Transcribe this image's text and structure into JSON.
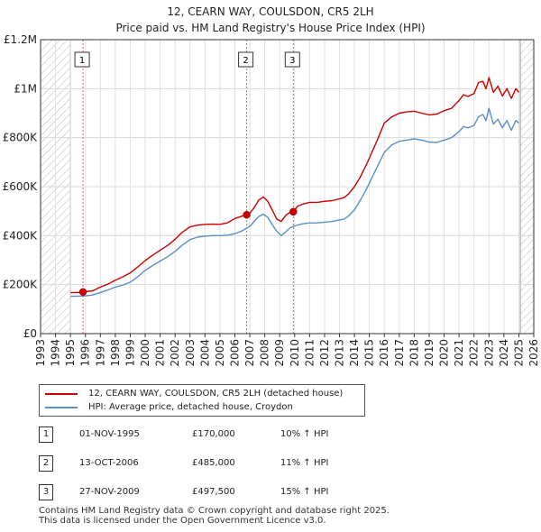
{
  "chart_data": {
    "type": "line",
    "title": "12, CEARN WAY, COULSDON, CR5 2LH",
    "subtitle": "Price paid vs. HM Land Registry's House Price Index (HPI)",
    "xlabel": "",
    "ylabel": "",
    "xlim": [
      1993,
      2026
    ],
    "ylim": [
      0,
      1200000
    ],
    "y_ticks": [
      {
        "value": 0,
        "label": "£0"
      },
      {
        "value": 200000,
        "label": "£200K"
      },
      {
        "value": 400000,
        "label": "£400K"
      },
      {
        "value": 600000,
        "label": "£600K"
      },
      {
        "value": 800000,
        "label": "£800K"
      },
      {
        "value": 1000000,
        "label": "£1M"
      },
      {
        "value": 1200000,
        "label": "£1.2M"
      }
    ],
    "x_ticks": [
      "1993",
      "1994",
      "1995",
      "1996",
      "1997",
      "1998",
      "1999",
      "2000",
      "2001",
      "2002",
      "2003",
      "2004",
      "2005",
      "2006",
      "2007",
      "2008",
      "2009",
      "2010",
      "2011",
      "2012",
      "2013",
      "2014",
      "2015",
      "2016",
      "2017",
      "2018",
      "2019",
      "2020",
      "2021",
      "2022",
      "2023",
      "2024",
      "2025",
      "2026"
    ],
    "grid": true,
    "hatched_regions": [
      [
        1993,
        1995
      ],
      [
        2025.1,
        2026
      ]
    ],
    "series": [
      {
        "name": "12, CEARN WAY, COULSDON, CR5 2LH (detached house)",
        "color": "#cc0000",
        "x": [
          1995.0,
          1995.5,
          1995.84,
          1996.5,
          1997.0,
          1997.5,
          1998.0,
          1998.5,
          1999.0,
          1999.5,
          2000.0,
          2000.5,
          2001.0,
          2001.5,
          2002.0,
          2002.5,
          2003.0,
          2003.5,
          2004.0,
          2004.5,
          2005.0,
          2005.5,
          2006.0,
          2006.5,
          2006.79,
          2007.0,
          2007.3,
          2007.6,
          2007.9,
          2008.2,
          2008.5,
          2008.8,
          2009.1,
          2009.4,
          2009.6,
          2009.91,
          2010.2,
          2010.5,
          2011.0,
          2011.5,
          2012.0,
          2012.5,
          2013.0,
          2013.3,
          2013.6,
          2014.0,
          2014.4,
          2014.8,
          2015.2,
          2015.6,
          2016.0,
          2016.5,
          2017.0,
          2017.5,
          2018.0,
          2018.5,
          2019.0,
          2019.5,
          2020.0,
          2020.5,
          2021.0,
          2021.3,
          2021.6,
          2022.0,
          2022.3,
          2022.6,
          2022.8,
          2023.0,
          2023.3,
          2023.6,
          2023.9,
          2024.2,
          2024.5,
          2024.8,
          2025.0
        ],
        "values": [
          168000,
          168000,
          170000,
          175000,
          190000,
          202000,
          218000,
          232000,
          248000,
          272000,
          298000,
          320000,
          340000,
          360000,
          385000,
          415000,
          436000,
          443000,
          446000,
          447000,
          446000,
          452000,
          470000,
          480000,
          485000,
          492000,
          515000,
          545000,
          558000,
          540000,
          505000,
          468000,
          458000,
          482000,
          492000,
          497500,
          520000,
          528000,
          536000,
          536000,
          540000,
          543000,
          550000,
          555000,
          570000,
          600000,
          640000,
          690000,
          745000,
          800000,
          860000,
          885000,
          900000,
          905000,
          908000,
          900000,
          893000,
          896000,
          910000,
          920000,
          952000,
          975000,
          968000,
          980000,
          1025000,
          1030000,
          1000000,
          1045000,
          985000,
          1010000,
          970000,
          1000000,
          960000,
          1000000,
          985000
        ]
      },
      {
        "name": "HPI: Average price, detached house, Croydon",
        "color": "#5b8fc8",
        "x": [
          1995.0,
          1995.5,
          1996.0,
          1996.5,
          1997.0,
          1997.5,
          1998.0,
          1998.5,
          1999.0,
          1999.5,
          2000.0,
          2000.5,
          2001.0,
          2001.5,
          2002.0,
          2002.5,
          2003.0,
          2003.5,
          2004.0,
          2004.5,
          2005.0,
          2005.5,
          2006.0,
          2006.5,
          2007.0,
          2007.3,
          2007.6,
          2007.9,
          2008.2,
          2008.5,
          2008.8,
          2009.1,
          2009.4,
          2009.7,
          2010.0,
          2010.5,
          2011.0,
          2011.5,
          2012.0,
          2012.5,
          2013.0,
          2013.3,
          2013.6,
          2014.0,
          2014.4,
          2014.8,
          2015.2,
          2015.6,
          2016.0,
          2016.5,
          2017.0,
          2017.5,
          2018.0,
          2018.5,
          2019.0,
          2019.5,
          2020.0,
          2020.5,
          2021.0,
          2021.3,
          2021.6,
          2022.0,
          2022.3,
          2022.6,
          2022.8,
          2023.0,
          2023.3,
          2023.6,
          2023.9,
          2024.2,
          2024.5,
          2024.8,
          2025.0
        ],
        "values": [
          152000,
          153000,
          154000,
          158000,
          168000,
          178000,
          190000,
          198000,
          210000,
          232000,
          258000,
          278000,
          296000,
          314000,
          336000,
          362000,
          384000,
          394000,
          398000,
          400000,
          400000,
          402000,
          408000,
          420000,
          438000,
          458000,
          478000,
          488000,
          475000,
          445000,
          418000,
          400000,
          415000,
          432000,
          440000,
          448000,
          452000,
          452000,
          455000,
          458000,
          464000,
          468000,
          480000,
          505000,
          545000,
          590000,
          640000,
          690000,
          740000,
          770000,
          785000,
          790000,
          795000,
          790000,
          782000,
          780000,
          790000,
          800000,
          825000,
          845000,
          840000,
          850000,
          885000,
          895000,
          870000,
          920000,
          855000,
          875000,
          840000,
          870000,
          830000,
          870000,
          860000
        ]
      }
    ],
    "annotations": [
      {
        "label": "1",
        "x": 1995.84
      },
      {
        "label": "2",
        "x": 2006.79
      },
      {
        "label": "3",
        "x": 2009.91
      }
    ],
    "sale_points": [
      {
        "x": 1995.84,
        "value": 170000
      },
      {
        "x": 2006.79,
        "value": 485000
      },
      {
        "x": 2009.91,
        "value": 497500
      }
    ]
  },
  "legend": {
    "items": [
      {
        "label": "12, CEARN WAY, COULSDON, CR5 2LH (detached house)",
        "color": "#cc0000"
      },
      {
        "label": "HPI: Average price, detached house, Croydon",
        "color": "#5b8fc8"
      }
    ]
  },
  "sales": [
    {
      "num": "1",
      "date": "01-NOV-1995",
      "price": "£170,000",
      "hpi": "10% ↑ HPI"
    },
    {
      "num": "2",
      "date": "13-OCT-2006",
      "price": "£485,000",
      "hpi": "11% ↑ HPI"
    },
    {
      "num": "3",
      "date": "27-NOV-2009",
      "price": "£497,500",
      "hpi": "15% ↑ HPI"
    }
  ],
  "footer": {
    "line1": "Contains HM Land Registry data © Crown copyright and database right 2025.",
    "line2": "This data is licensed under the Open Government Licence v3.0."
  }
}
